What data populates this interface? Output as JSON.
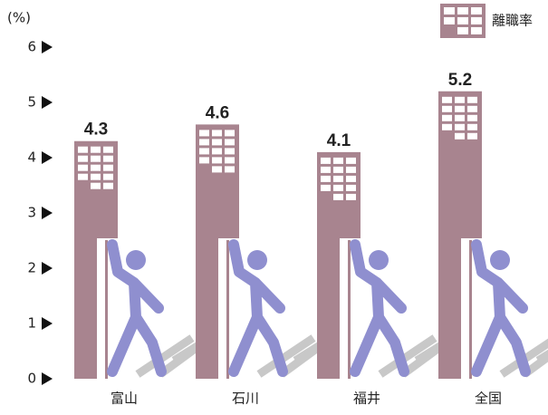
{
  "chart_data": {
    "type": "bar",
    "y_axis_label": "(%)",
    "legend": "離職率",
    "categories": [
      "富山",
      "石川",
      "福井",
      "全国"
    ],
    "values": [
      4.3,
      4.6,
      4.1,
      5.2
    ],
    "color": "#a8848f",
    "figure_color": "#8f8fcf",
    "ylim": [
      0,
      6
    ],
    "yticks": [
      0,
      1,
      2,
      3,
      4,
      5,
      6
    ]
  }
}
